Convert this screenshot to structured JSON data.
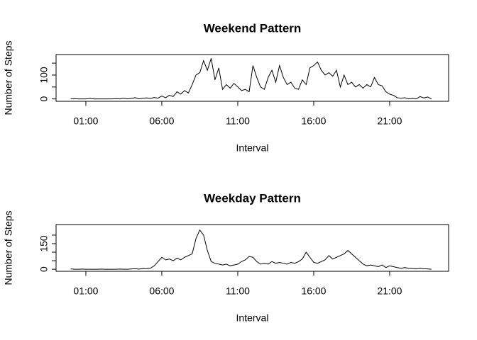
{
  "chart_data": [
    {
      "type": "line",
      "title": "Weekend Pattern",
      "xlabel": "Interval",
      "ylabel": "Number of Steps",
      "x": [
        0,
        0.25,
        0.5,
        0.75,
        1,
        1.25,
        1.5,
        1.75,
        2,
        2.25,
        2.5,
        2.75,
        3,
        3.25,
        3.5,
        3.75,
        4,
        4.25,
        4.5,
        4.75,
        5,
        5.25,
        5.5,
        5.75,
        6,
        6.25,
        6.5,
        6.75,
        7,
        7.25,
        7.5,
        7.75,
        8,
        8.25,
        8.5,
        8.75,
        9,
        9.25,
        9.5,
        9.75,
        10,
        10.25,
        10.5,
        10.75,
        11,
        11.25,
        11.5,
        11.75,
        12,
        12.25,
        12.5,
        12.75,
        13,
        13.25,
        13.5,
        13.75,
        14,
        14.25,
        14.5,
        14.75,
        15,
        15.25,
        15.5,
        15.75,
        16,
        16.25,
        16.5,
        16.75,
        17,
        17.25,
        17.5,
        17.75,
        18,
        18.25,
        18.5,
        18.75,
        19,
        19.25,
        19.5,
        19.75,
        20,
        20.25,
        20.5,
        20.75,
        21,
        21.25,
        21.5,
        21.75,
        22,
        22.25,
        22.5,
        22.75,
        23,
        23.25,
        23.5,
        23.75
      ],
      "series": [
        {
          "name": "Weekend",
          "color": "#000000",
          "values": [
            0,
            1,
            0,
            0,
            0,
            2,
            0,
            0,
            0,
            0,
            0,
            0,
            1,
            0,
            3,
            0,
            2,
            5,
            0,
            3,
            4,
            2,
            6,
            3,
            12,
            5,
            15,
            10,
            30,
            20,
            35,
            25,
            60,
            100,
            110,
            160,
            120,
            170,
            80,
            130,
            40,
            60,
            45,
            65,
            50,
            35,
            40,
            30,
            140,
            90,
            50,
            40,
            90,
            120,
            70,
            140,
            90,
            60,
            70,
            45,
            40,
            80,
            60,
            130,
            140,
            155,
            120,
            100,
            110,
            95,
            120,
            50,
            100,
            60,
            70,
            50,
            60,
            45,
            60,
            50,
            90,
            60,
            55,
            30,
            20,
            15,
            5,
            3,
            5,
            0,
            2,
            0,
            10,
            4,
            8,
            0
          ]
        }
      ],
      "xlim": [
        -0.96,
        24.88
      ],
      "xticks": [
        {
          "value": 1,
          "label": "01:00"
        },
        {
          "value": 6,
          "label": "06:00"
        },
        {
          "value": 11,
          "label": "11:00"
        },
        {
          "value": 16,
          "label": "16:00"
        },
        {
          "value": 21,
          "label": "21:00"
        }
      ],
      "ylim": [
        -10,
        186
      ],
      "yticks": [
        0,
        100
      ],
      "minor_yticks": [
        50,
        150
      ]
    },
    {
      "type": "line",
      "title": "Weekday Pattern",
      "xlabel": "Interval",
      "ylabel": "Number of Steps",
      "x": [
        0,
        0.25,
        0.5,
        0.75,
        1,
        1.25,
        1.5,
        1.75,
        2,
        2.25,
        2.5,
        2.75,
        3,
        3.25,
        3.5,
        3.75,
        4,
        4.25,
        4.5,
        4.75,
        5,
        5.25,
        5.5,
        5.75,
        6,
        6.25,
        6.5,
        6.75,
        7,
        7.25,
        7.5,
        7.75,
        8,
        8.25,
        8.5,
        8.75,
        9,
        9.25,
        9.5,
        9.75,
        10,
        10.25,
        10.5,
        10.75,
        11,
        11.25,
        11.5,
        11.75,
        12,
        12.25,
        12.5,
        12.75,
        13,
        13.25,
        13.5,
        13.75,
        14,
        14.25,
        14.5,
        14.75,
        15,
        15.25,
        15.5,
        15.75,
        16,
        16.25,
        16.5,
        16.75,
        17,
        17.25,
        17.5,
        17.75,
        18,
        18.25,
        18.5,
        18.75,
        19,
        19.25,
        19.5,
        19.75,
        20,
        20.25,
        20.5,
        20.75,
        21,
        21.25,
        21.5,
        21.75,
        22,
        22.25,
        22.5,
        22.75,
        23,
        23.25,
        23.5,
        23.75
      ],
      "series": [
        {
          "name": "Weekday",
          "color": "#000000",
          "values": [
            2,
            0,
            0,
            1,
            0,
            0,
            0,
            0,
            1,
            0,
            0,
            0,
            0,
            1,
            0,
            0,
            2,
            3,
            1,
            4,
            3,
            6,
            20,
            45,
            70,
            55,
            60,
            50,
            65,
            55,
            70,
            80,
            90,
            180,
            230,
            200,
            110,
            45,
            35,
            30,
            25,
            30,
            20,
            25,
            30,
            45,
            55,
            75,
            70,
            45,
            30,
            35,
            30,
            45,
            35,
            40,
            35,
            30,
            40,
            35,
            45,
            60,
            100,
            70,
            40,
            35,
            45,
            55,
            80,
            60,
            70,
            80,
            90,
            110,
            90,
            70,
            50,
            30,
            20,
            25,
            20,
            15,
            25,
            10,
            20,
            15,
            10,
            5,
            10,
            5,
            4,
            3,
            5,
            3,
            2,
            0
          ]
        }
      ],
      "xlim": [
        -0.96,
        24.88
      ],
      "xticks": [
        {
          "value": 1,
          "label": "01:00"
        },
        {
          "value": 6,
          "label": "06:00"
        },
        {
          "value": 11,
          "label": "11:00"
        },
        {
          "value": 16,
          "label": "16:00"
        },
        {
          "value": 21,
          "label": "21:00"
        }
      ],
      "ylim": [
        -12,
        262
      ],
      "yticks": [
        0,
        150
      ],
      "minor_yticks": [
        50,
        100,
        200
      ]
    }
  ]
}
